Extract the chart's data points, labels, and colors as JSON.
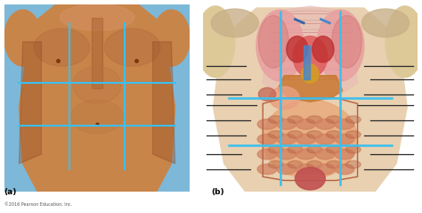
{
  "fig_width": 4.74,
  "fig_height": 2.39,
  "dpi": 100,
  "bg_color": "#ffffff",
  "label_a": "(a)",
  "label_b": "(b)",
  "copyright": "©2016 Pearson Education, Inc.",
  "left_bg": "#7db8d8",
  "right_bg": "#ffffff",
  "cyan": "#3bbfef",
  "dark_line": "#2a2a2a",
  "skin_light": "#e8c49a",
  "skin_mid": "#c8854a",
  "skin_dark": "#a06030",
  "skin_shadow": "#904820",
  "pink_lung": "#e8a0a0",
  "pink_dark": "#d07070",
  "red_heart": "#c03030",
  "orange_liver": "#c87830",
  "tan_body": "#e8d0b0",
  "intestine_color": "#d08060",
  "intestine_dark": "#b86040",
  "bladder_color": "#c05050"
}
